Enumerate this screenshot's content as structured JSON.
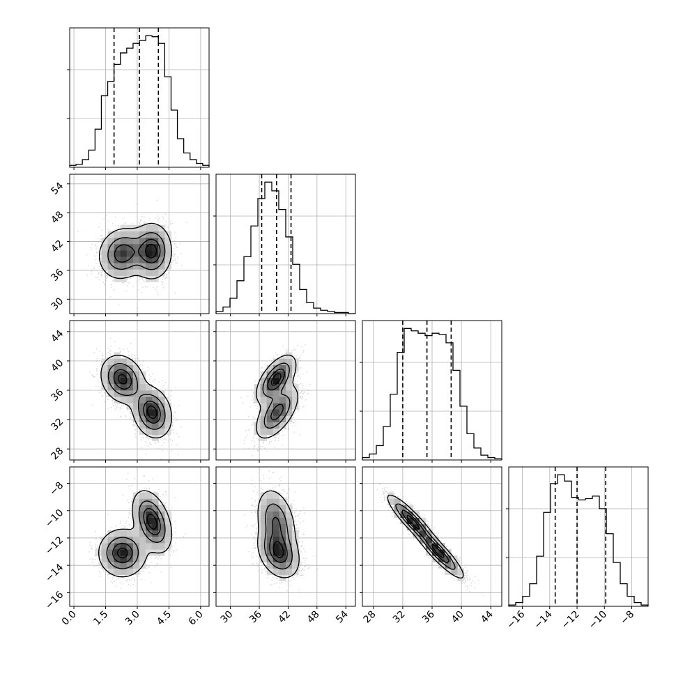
{
  "chart_data": {
    "type": "corner",
    "title": "",
    "grid": true,
    "parameters": [
      {
        "index": 0,
        "range": [
          -0.2,
          6.4
        ],
        "ticks": [
          0.0,
          1.5,
          3.0,
          4.5,
          6.0
        ],
        "tick_labels": [
          "0.0",
          "1.5",
          "3.0",
          "4.5",
          "6.0"
        ],
        "quantiles": [
          1.9,
          3.1,
          4.0
        ]
      },
      {
        "index": 1,
        "range": [
          27,
          56
        ],
        "ticks": [
          30,
          36,
          42,
          48,
          54
        ],
        "tick_labels": [
          "30",
          "36",
          "42",
          "48",
          "54"
        ],
        "quantiles": [
          36.5,
          39.6,
          42.6
        ]
      },
      {
        "index": 2,
        "range": [
          26.5,
          45.5
        ],
        "ticks": [
          28,
          32,
          36,
          40,
          44
        ],
        "tick_labels": [
          "28",
          "32",
          "36",
          "40",
          "44"
        ],
        "quantiles": [
          32.0,
          35.3,
          38.6
        ]
      },
      {
        "index": 3,
        "range": [
          -17,
          -6.8
        ],
        "ticks": [
          -16,
          -14,
          -12,
          -10,
          -8
        ],
        "tick_labels": [
          "−16",
          "−14",
          "−12",
          "−10",
          "−8"
        ],
        "quantiles": [
          -13.6,
          -12.0,
          -9.9
        ]
      }
    ],
    "marginals": [
      {
        "param": 0,
        "edges": [
          -0.2,
          0.1,
          0.4,
          0.7,
          1.0,
          1.3,
          1.6,
          1.9,
          2.2,
          2.5,
          2.8,
          3.1,
          3.4,
          3.7,
          4.0,
          4.3,
          4.6,
          4.9,
          5.2,
          5.5,
          5.8,
          6.1,
          6.4
        ],
        "counts": [
          2,
          3,
          8,
          18,
          40,
          75,
          90,
          108,
          120,
          125,
          130,
          133,
          138,
          137,
          130,
          95,
          60,
          30,
          15,
          8,
          4,
          2
        ]
      },
      {
        "param": 1,
        "edges": [
          27,
          28.45,
          29.9,
          31.35,
          32.8,
          34.25,
          35.7,
          37.15,
          38.6,
          40.05,
          41.5,
          42.95,
          44.4,
          45.85,
          47.3,
          48.75,
          50.2,
          51.65,
          53.1,
          54.55,
          56.0
        ],
        "counts": [
          2,
          6,
          14,
          30,
          52,
          80,
          105,
          120,
          112,
          95,
          70,
          45,
          22,
          10,
          5,
          3,
          2,
          1,
          1,
          0
        ]
      },
      {
        "param": 2,
        "edges": [
          26.5,
          27.45,
          28.4,
          29.35,
          30.3,
          31.25,
          32.2,
          33.15,
          34.1,
          35.05,
          36.0,
          36.95,
          37.9,
          38.85,
          39.8,
          40.75,
          41.7,
          42.65,
          43.6,
          44.55,
          45.5
        ],
        "counts": [
          2,
          5,
          12,
          28,
          55,
          90,
          110,
          108,
          106,
          104,
          106,
          105,
          98,
          75,
          45,
          22,
          10,
          4,
          2,
          1
        ]
      },
      {
        "param": 3,
        "edges": [
          -17.0,
          -16.49,
          -15.98,
          -15.47,
          -14.96,
          -14.45,
          -13.94,
          -13.43,
          -12.92,
          -12.41,
          -11.9,
          -11.39,
          -10.88,
          -10.37,
          -9.86,
          -9.35,
          -8.84,
          -8.33,
          -7.82,
          -7.31,
          -6.8
        ],
        "counts": [
          1,
          3,
          8,
          18,
          40,
          75,
          98,
          105,
          100,
          87,
          85,
          86,
          88,
          78,
          58,
          35,
          18,
          8,
          3,
          1
        ]
      }
    ],
    "joint": [
      {
        "x": 0,
        "y": 1,
        "modes": [
          {
            "mx": 2.3,
            "my": 39.5,
            "sx": 0.55,
            "sy": 2.6,
            "rho": 0.1,
            "w": 0.5
          },
          {
            "mx": 3.7,
            "my": 40.0,
            "sx": 0.45,
            "sy": 2.8,
            "rho": 0.0,
            "w": 0.5
          }
        ]
      },
      {
        "x": 0,
        "y": 2,
        "modes": [
          {
            "mx": 2.3,
            "my": 37.5,
            "sx": 0.5,
            "sy": 1.6,
            "rho": -0.2,
            "w": 0.5
          },
          {
            "mx": 3.7,
            "my": 33.0,
            "sx": 0.45,
            "sy": 1.7,
            "rho": -0.2,
            "w": 0.5
          }
        ]
      },
      {
        "x": 0,
        "y": 3,
        "modes": [
          {
            "mx": 2.3,
            "my": -13.1,
            "sx": 0.55,
            "sy": 0.85,
            "rho": 0.0,
            "w": 0.5
          },
          {
            "mx": 3.7,
            "my": -10.8,
            "sx": 0.45,
            "sy": 1.1,
            "rho": -0.4,
            "w": 0.5
          }
        ]
      },
      {
        "x": 1,
        "y": 2,
        "modes": [
          {
            "mx": 39.5,
            "my": 37.5,
            "sx": 2.0,
            "sy": 1.6,
            "rho": 0.6,
            "w": 0.5
          },
          {
            "mx": 39.7,
            "my": 33.0,
            "sx": 2.2,
            "sy": 1.8,
            "rho": 0.6,
            "w": 0.5
          }
        ]
      },
      {
        "x": 1,
        "y": 3,
        "modes": [
          {
            "mx": 39.5,
            "my": -10.8,
            "sx": 2.0,
            "sy": 1.2,
            "rho": -0.3,
            "w": 0.5
          },
          {
            "mx": 40.0,
            "my": -13.1,
            "sx": 2.1,
            "sy": 0.9,
            "rho": -0.3,
            "w": 0.5
          }
        ]
      },
      {
        "x": 2,
        "y": 3,
        "modes": [
          {
            "mx": 33.2,
            "my": -10.7,
            "sx": 1.6,
            "sy": 0.9,
            "rho": -0.9,
            "w": 0.5
          },
          {
            "mx": 37.0,
            "my": -13.1,
            "sx": 1.6,
            "sy": 0.9,
            "rho": -0.9,
            "w": 0.5
          }
        ]
      }
    ],
    "contour_levels": [
      0.12,
      0.39,
      0.68,
      0.88
    ]
  }
}
